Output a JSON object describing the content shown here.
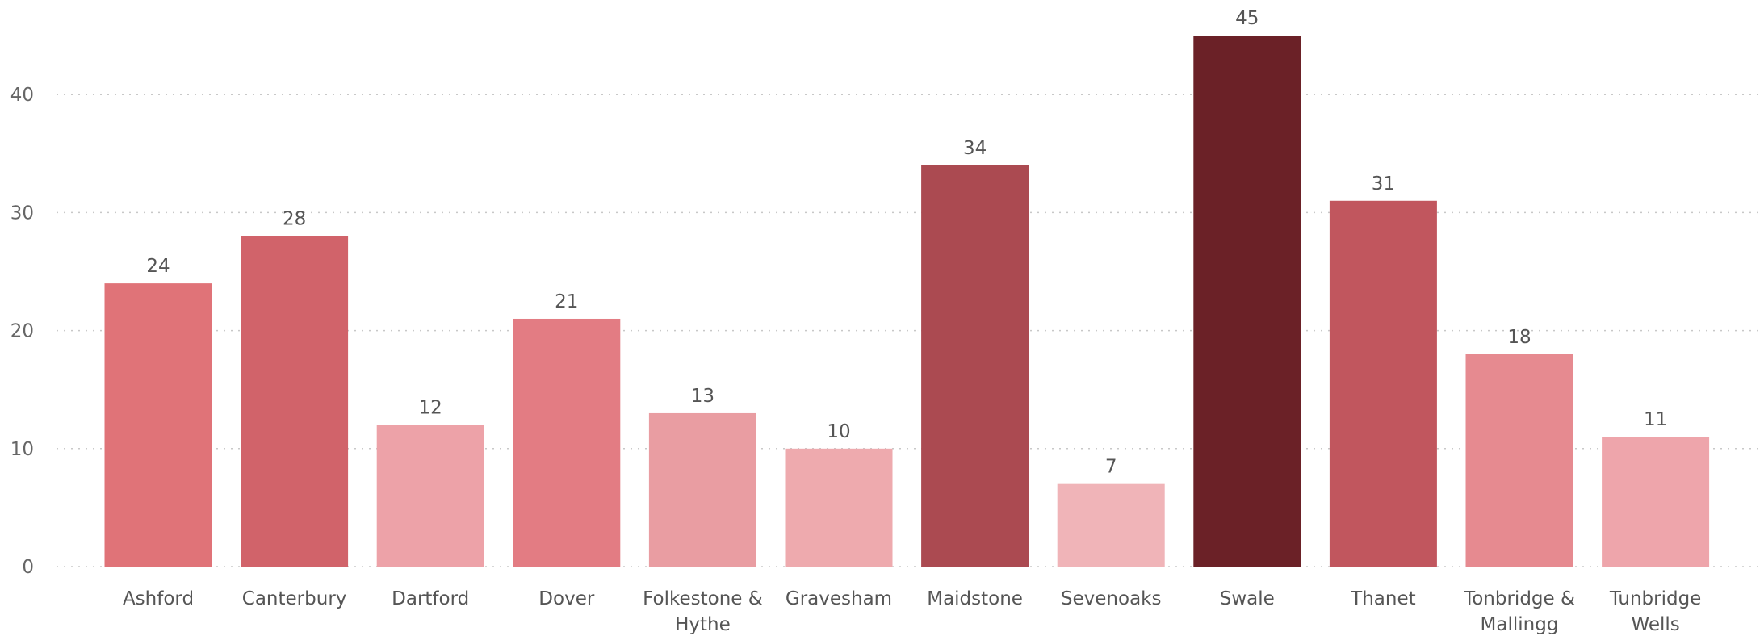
{
  "chart_data": {
    "type": "bar",
    "title": "",
    "xlabel": "",
    "ylabel": "",
    "ylim": [
      0,
      45
    ],
    "yticks": [
      0,
      10,
      20,
      30,
      40
    ],
    "grid": "horizontal-dotted",
    "legend": "none",
    "categories": [
      "Ashford",
      "Canterbury",
      "Dartford",
      "Dover",
      "Folkestone & Hythe",
      "Gravesham",
      "Maidstone",
      "Sevenoaks",
      "Swale",
      "Thanet",
      "Tonbridge & Mallingg",
      "Tunbridge Wells"
    ],
    "values": [
      24,
      28,
      12,
      21,
      13,
      10,
      34,
      7,
      45,
      31,
      18,
      11
    ],
    "colors": [
      "#e07378",
      "#d1636a",
      "#eda2a8",
      "#e37c83",
      "#e99da2",
      "#eeaaae",
      "#ab4a51",
      "#f0b4b8",
      "#6b2127",
      "#c1565e",
      "#e68a90",
      "#eea5ab"
    ]
  }
}
